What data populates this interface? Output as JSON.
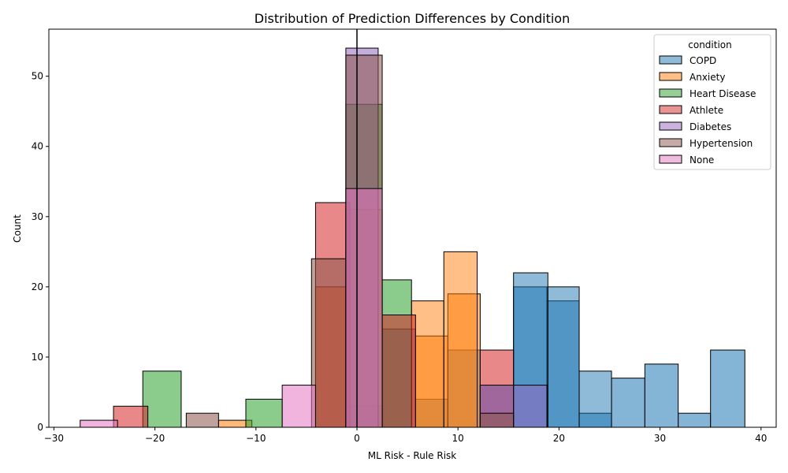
{
  "chart_data": {
    "type": "histogram",
    "title": "Distribution of Prediction Differences by Condition",
    "xlabel": "ML Risk - Rule Risk",
    "ylabel": "Count",
    "xlim": [
      -30.5,
      41.5
    ],
    "ylim": [
      0,
      56.7
    ],
    "xticks": [
      -30,
      -20,
      -10,
      0,
      10,
      20,
      30,
      40
    ],
    "yticks": [
      0,
      10,
      20,
      30,
      40,
      50
    ],
    "grid": false,
    "legend": {
      "title": "condition",
      "placement": "top-right"
    },
    "reference_line_x": 0,
    "series": [
      {
        "name": "COPD",
        "color": "#1f77b4",
        "bins": [
          {
            "x0": -1.1,
            "x1": 2.5,
            "count": 3
          },
          {
            "x0": 2.5,
            "x1": 5.8,
            "count": 14
          },
          {
            "x0": 5.8,
            "x1": 9.0,
            "count": 4
          },
          {
            "x0": 9.0,
            "x1": 12.2,
            "count": 11
          },
          {
            "x0": 12.2,
            "x1": 15.5,
            "count": 6
          },
          {
            "x0": 15.5,
            "x1": 18.8,
            "count": 20
          },
          {
            "x0": 18.8,
            "x1": 22.0,
            "count": 18
          },
          {
            "x0": 22.0,
            "x1": 25.2,
            "count": 2
          },
          {
            "x0": 25.2,
            "x1": 28.5,
            "count": 7
          },
          {
            "x0": 28.5,
            "x1": 31.8,
            "count": 9
          },
          {
            "x0": 31.8,
            "x1": 35.0,
            "count": 2
          },
          {
            "x0": 35.0,
            "x1": 38.4,
            "count": 11
          }
        ]
      },
      {
        "name": "COPD",
        "color": "#1f77b4",
        "alpha_hint": "light",
        "bins": [
          {
            "x0": 15.5,
            "x1": 18.9,
            "count": 22
          },
          {
            "x0": 18.9,
            "x1": 22.0,
            "count": 20
          },
          {
            "x0": 22.0,
            "x1": 25.2,
            "count": 8
          }
        ]
      },
      {
        "name": "Anxiety",
        "color": "#ff7f0e",
        "bins": [
          {
            "x0": -13.7,
            "x1": -10.4,
            "count": 1
          },
          {
            "x0": -4.1,
            "x1": -1.1,
            "count": 20
          },
          {
            "x0": -1.1,
            "x1": 2.5,
            "count": 31
          },
          {
            "x0": 5.8,
            "x1": 9.0,
            "count": 13
          },
          {
            "x0": 9.0,
            "x1": 12.2,
            "count": 19
          }
        ]
      },
      {
        "name": "Anxiety",
        "color": "#ff7f0e",
        "alpha_hint": "light",
        "bins": [
          {
            "x0": 5.4,
            "x1": 8.6,
            "count": 18
          },
          {
            "x0": 8.6,
            "x1": 11.9,
            "count": 25
          }
        ]
      },
      {
        "name": "Heart Disease",
        "color": "#2ca02c",
        "bins": [
          {
            "x0": -21.2,
            "x1": -17.4,
            "count": 8
          },
          {
            "x0": -11.0,
            "x1": -7.4,
            "count": 4
          },
          {
            "x0": -1.1,
            "x1": 2.5,
            "count": 46
          },
          {
            "x0": 2.5,
            "x1": 5.4,
            "count": 21
          }
        ]
      },
      {
        "name": "Athlete",
        "color": "#d62728",
        "bins": [
          {
            "x0": -24.1,
            "x1": -20.7,
            "count": 3
          },
          {
            "x0": -4.1,
            "x1": -0.7,
            "count": 32
          },
          {
            "x0": 2.5,
            "x1": 5.8,
            "count": 16
          },
          {
            "x0": 12.2,
            "x1": 15.5,
            "count": 11
          }
        ]
      },
      {
        "name": "Diabetes",
        "color": "#9467bd",
        "bins": [
          {
            "x0": -1.1,
            "x1": 2.1,
            "count": 54
          },
          {
            "x0": 12.2,
            "x1": 15.5,
            "count": 6
          },
          {
            "x0": 15.5,
            "x1": 18.8,
            "count": 6
          }
        ]
      },
      {
        "name": "Hypertension",
        "color": "#8c564b",
        "bins": [
          {
            "x0": -16.9,
            "x1": -13.7,
            "count": 2
          },
          {
            "x0": -4.5,
            "x1": -1.1,
            "count": 24
          },
          {
            "x0": -1.1,
            "x1": 2.5,
            "count": 53
          },
          {
            "x0": 12.2,
            "x1": 15.5,
            "count": 2
          }
        ]
      },
      {
        "name": "None",
        "color": "#e377c2",
        "bins": [
          {
            "x0": -27.4,
            "x1": -23.7,
            "count": 1
          },
          {
            "x0": -7.4,
            "x1": -4.1,
            "count": 6
          },
          {
            "x0": -1.1,
            "x1": 2.5,
            "count": 34
          }
        ]
      }
    ],
    "legend_entries": [
      {
        "label": "COPD",
        "color": "#1f77b4"
      },
      {
        "label": "Anxiety",
        "color": "#ff7f0e"
      },
      {
        "label": "Heart Disease",
        "color": "#2ca02c"
      },
      {
        "label": "Athlete",
        "color": "#d62728"
      },
      {
        "label": "Diabetes",
        "color": "#9467bd"
      },
      {
        "label": "Hypertension",
        "color": "#8c564b"
      },
      {
        "label": "None",
        "color": "#e377c2"
      }
    ]
  }
}
